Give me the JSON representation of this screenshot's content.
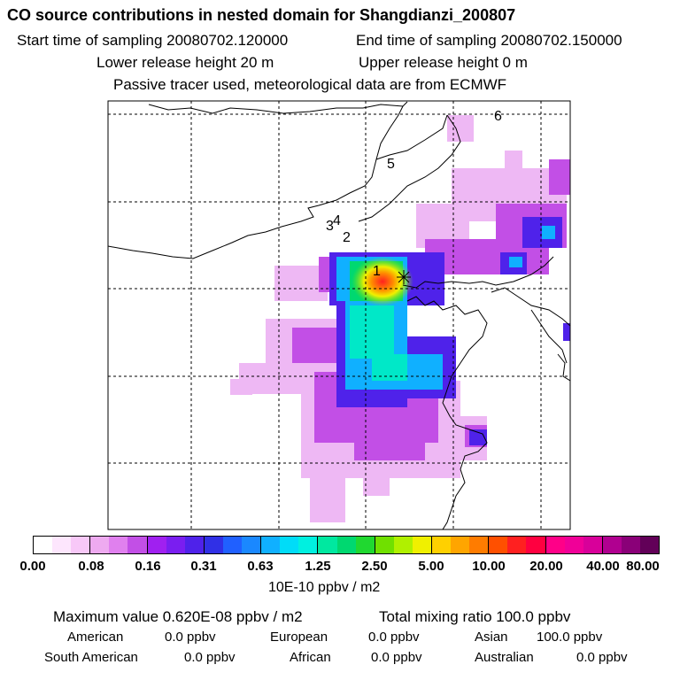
{
  "header": {
    "title": "CO  source contributions in nested domain for Shangdianzi_200807",
    "start_time": "Start time of sampling 20080702.120000",
    "end_time": "End time of sampling 20080702.150000",
    "lower_release": "Lower release height   20 m",
    "upper_release": "Upper release height    0 m",
    "tracer_note": "Passive tracer used, meteorological data are from ECMWF"
  },
  "map": {
    "receptor_marker": "*",
    "trajectory_points": [
      "1",
      "2",
      "3",
      "4",
      "5",
      "6"
    ]
  },
  "colorbar": {
    "tick_labels": [
      "0.00",
      "0.08",
      "0.16",
      "0.31",
      "0.63",
      "1.25",
      "2.50",
      "5.00",
      "10.00",
      "20.00",
      "40.00",
      "80.00"
    ],
    "units": "10E-10 ppbv / m2",
    "colors": [
      "#ffffff",
      "#fde6fd",
      "#f8c8f8",
      "#eeaaf0",
      "#e080ee",
      "#c24fe6",
      "#a020f0",
      "#7a1ef0",
      "#4f22ea",
      "#3030e6",
      "#2060ff",
      "#1a88ff",
      "#10b0ff",
      "#00dcf8",
      "#00f0e0",
      "#00e8a0",
      "#00d870",
      "#20d830",
      "#70e000",
      "#b0f000",
      "#f0f000",
      "#ffd000",
      "#ffa500",
      "#ff7c00",
      "#ff5000",
      "#ff2020",
      "#ff0040",
      "#ff0088",
      "#f00098",
      "#d8009a",
      "#b00090",
      "#8a0078",
      "#620058"
    ]
  },
  "stats": {
    "maximum_value": "Maximum value  0.620E-08 ppbv / m2",
    "total_mixing": "Total mixing ratio      100.0 ppbv",
    "sources": [
      {
        "name": "American",
        "value": "0.0 ppbv"
      },
      {
        "name": "European",
        "value": "0.0 ppbv"
      },
      {
        "name": "Asian",
        "value": "100.0 ppbv"
      },
      {
        "name": "South American",
        "value": "0.0 ppbv"
      },
      {
        "name": "African",
        "value": "0.0 ppbv"
      },
      {
        "name": "Australian",
        "value": "0.0 ppbv"
      }
    ]
  }
}
